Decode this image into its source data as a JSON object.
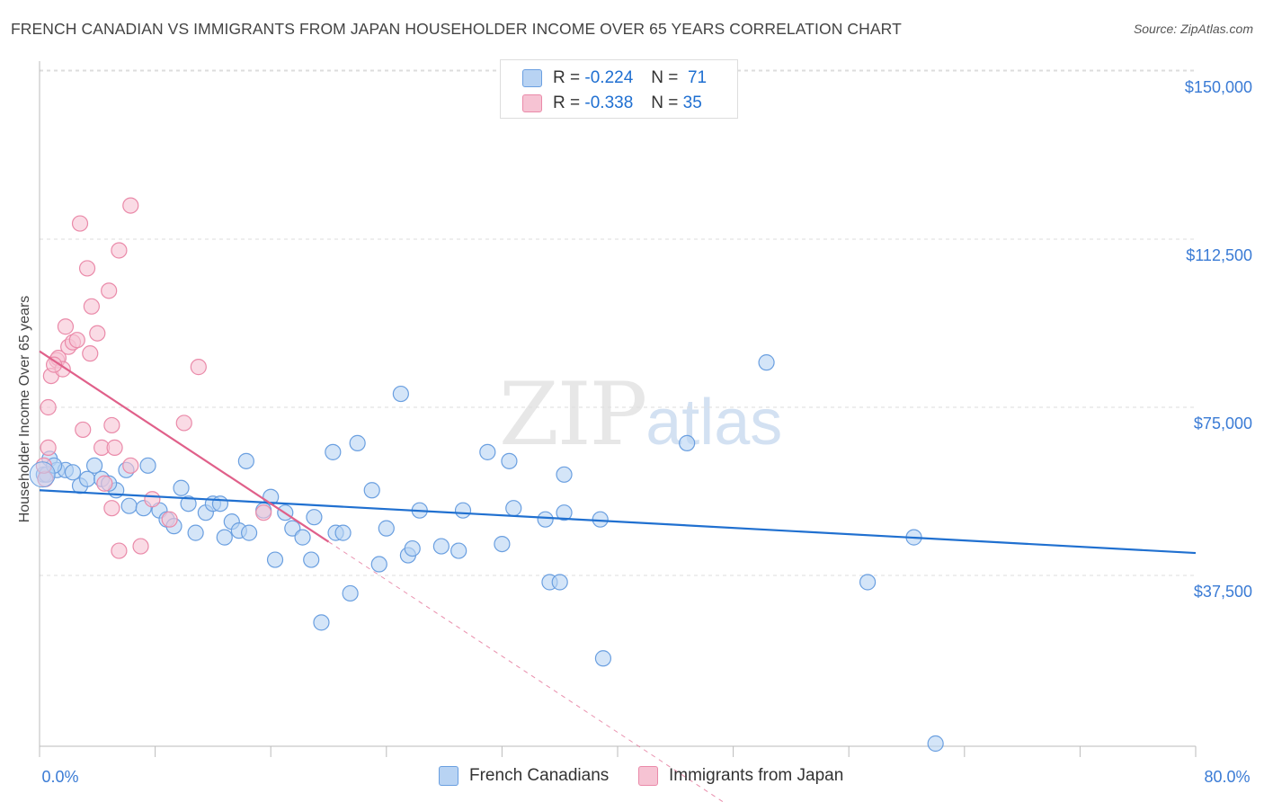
{
  "header": {
    "title": "FRENCH CANADIAN VS IMMIGRANTS FROM JAPAN HOUSEHOLDER INCOME OVER 65 YEARS CORRELATION CHART",
    "source": "Source: ZipAtlas.com"
  },
  "watermark": {
    "zip": "ZIP",
    "atlas": "atlas"
  },
  "legend_top": {
    "rows": [
      {
        "r_label": "R =",
        "r_value": "-0.224",
        "n_label": "N =",
        "n_value": "71"
      },
      {
        "r_label": "R =",
        "r_value": "-0.338",
        "n_label": "N =",
        "n_value": "35"
      }
    ]
  },
  "colors": {
    "blue_fill": "#b8d3f3",
    "blue_stroke": "#6a9fe0",
    "blue_line": "#2070d0",
    "pink_fill": "#f6c3d3",
    "pink_stroke": "#ea8aa9",
    "pink_line": "#e0608a",
    "axis_text": "#3a7bd5",
    "grid": "#dddddd"
  },
  "chart_data": {
    "type": "scatter",
    "title": "FRENCH CANADIAN VS IMMIGRANTS FROM JAPAN HOUSEHOLDER INCOME OVER 65 YEARS CORRELATION CHART",
    "xlabel": "",
    "ylabel": "Householder Income Over 65 years",
    "xlim": [
      0,
      80
    ],
    "ylim": [
      0,
      155000
    ],
    "x_tick_labels": [
      "0.0%",
      "80.0%"
    ],
    "y_ticks": [
      37500,
      75000,
      112500,
      150000
    ],
    "y_tick_labels": [
      "$37,500",
      "$75,000",
      "$112,500",
      "$150,000"
    ],
    "grid": true,
    "legend_position": "top-center and bottom",
    "series": [
      {
        "name": "French Canadians",
        "r": -0.224,
        "n": 71,
        "trend": {
          "x": [
            0,
            80
          ],
          "y": [
            56500,
            42500
          ]
        },
        "points": [
          [
            0.3,
            60000
          ],
          [
            0.7,
            63500
          ],
          [
            1.2,
            61000
          ],
          [
            1.8,
            61000
          ],
          [
            2.3,
            60500
          ],
          [
            2.8,
            57500
          ],
          [
            3.3,
            59000
          ],
          [
            3.8,
            62000
          ],
          [
            4.3,
            59000
          ],
          [
            5.3,
            56500
          ],
          [
            4.8,
            58000
          ],
          [
            6.0,
            61000
          ],
          [
            7.5,
            62000
          ],
          [
            6.2,
            53000
          ],
          [
            7.2,
            52500
          ],
          [
            8.3,
            52000
          ],
          [
            8.8,
            50000
          ],
          [
            9.3,
            48500
          ],
          [
            9.8,
            57000
          ],
          [
            10.3,
            53500
          ],
          [
            10.8,
            47000
          ],
          [
            11.5,
            51500
          ],
          [
            12.0,
            53500
          ],
          [
            12.5,
            53500
          ],
          [
            12.8,
            46000
          ],
          [
            13.3,
            49500
          ],
          [
            13.8,
            47500
          ],
          [
            14.3,
            63000
          ],
          [
            14.5,
            47000
          ],
          [
            15.5,
            52000
          ],
          [
            16.0,
            55000
          ],
          [
            16.3,
            41000
          ],
          [
            17.0,
            51500
          ],
          [
            17.5,
            48000
          ],
          [
            18.2,
            46000
          ],
          [
            19.0,
            50500
          ],
          [
            18.8,
            41000
          ],
          [
            19.5,
            27000
          ],
          [
            20.5,
            47000
          ],
          [
            20.3,
            65000
          ],
          [
            21.0,
            47000
          ],
          [
            21.5,
            33500
          ],
          [
            22.0,
            67000
          ],
          [
            23.0,
            56500
          ],
          [
            23.5,
            40000
          ],
          [
            24.0,
            48000
          ],
          [
            25.0,
            78000
          ],
          [
            25.5,
            42000
          ],
          [
            25.8,
            43500
          ],
          [
            26.3,
            52000
          ],
          [
            27.8,
            44000
          ],
          [
            29.3,
            52000
          ],
          [
            29.0,
            43000
          ],
          [
            31.0,
            65000
          ],
          [
            32.0,
            44500
          ],
          [
            32.5,
            63000
          ],
          [
            32.8,
            52500
          ],
          [
            35.3,
            36000
          ],
          [
            35.0,
            50000
          ],
          [
            36.0,
            36000
          ],
          [
            36.3,
            51500
          ],
          [
            36.3,
            60000
          ],
          [
            38.8,
            50000
          ],
          [
            39.0,
            19000
          ],
          [
            44.8,
            67000
          ],
          [
            50.3,
            85000
          ],
          [
            57.3,
            36000
          ],
          [
            60.5,
            46000
          ],
          [
            62.0,
            0
          ],
          [
            0.5,
            60000
          ],
          [
            1.0,
            62000
          ]
        ]
      },
      {
        "name": "Immigrants from Japan",
        "r": -0.338,
        "n": 35,
        "trend": {
          "x": [
            0,
            20
          ],
          "y": [
            87500,
            45000
          ]
        },
        "trend_dashed": {
          "x": [
            20,
            48
          ],
          "y": [
            45000,
            -14500
          ]
        },
        "points": [
          [
            0.4,
            59000
          ],
          [
            0.6,
            75000
          ],
          [
            0.6,
            66000
          ],
          [
            0.8,
            82000
          ],
          [
            1.2,
            85500
          ],
          [
            1.3,
            86000
          ],
          [
            1.6,
            83500
          ],
          [
            1.8,
            93000
          ],
          [
            2.0,
            88500
          ],
          [
            2.3,
            89500
          ],
          [
            2.6,
            90000
          ],
          [
            2.8,
            116000
          ],
          [
            3.0,
            70000
          ],
          [
            3.3,
            106000
          ],
          [
            3.5,
            87000
          ],
          [
            3.6,
            97500
          ],
          [
            4.0,
            91500
          ],
          [
            4.3,
            66000
          ],
          [
            4.5,
            58000
          ],
          [
            4.8,
            101000
          ],
          [
            5.0,
            52500
          ],
          [
            5.0,
            71000
          ],
          [
            5.2,
            66000
          ],
          [
            5.5,
            43000
          ],
          [
            5.5,
            110000
          ],
          [
            6.3,
            62000
          ],
          [
            6.3,
            120000
          ],
          [
            7.0,
            44000
          ],
          [
            7.8,
            54500
          ],
          [
            9.0,
            50000
          ],
          [
            10.0,
            71500
          ],
          [
            11.0,
            84000
          ],
          [
            15.5,
            51500
          ],
          [
            0.3,
            62000
          ],
          [
            1.0,
            84500
          ]
        ]
      }
    ]
  },
  "bottom_legend": {
    "items": [
      {
        "label": "French Canadians"
      },
      {
        "label": "Immigrants from Japan"
      }
    ]
  }
}
